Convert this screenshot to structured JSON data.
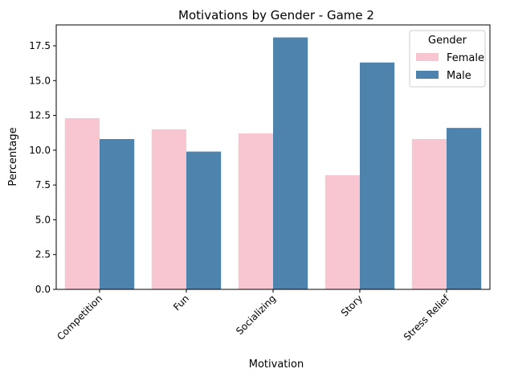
{
  "chart_data": {
    "type": "bar",
    "title": "Motivations by Gender - Game 2",
    "xlabel": "Motivation",
    "ylabel": "Percentage",
    "categories": [
      "Competition",
      "Fun",
      "Socializing",
      "Story",
      "Stress Relief"
    ],
    "series": [
      {
        "name": "Female",
        "color": "#f7c6d0",
        "values": [
          12.3,
          11.5,
          11.2,
          8.2,
          10.8
        ]
      },
      {
        "name": "Male",
        "color": "#4e83ad",
        "values": [
          10.8,
          9.9,
          18.1,
          16.3,
          11.6
        ]
      }
    ],
    "ylim": [
      0,
      19.0
    ],
    "yticks": [
      0.0,
      2.5,
      5.0,
      7.5,
      10.0,
      12.5,
      15.0,
      17.5
    ],
    "ytick_labels": [
      "0.0",
      "2.5",
      "5.0",
      "7.5",
      "10.0",
      "12.5",
      "15.0",
      "17.5"
    ],
    "legend": {
      "title": "Gender",
      "position": "top-right"
    },
    "grid": false
  }
}
